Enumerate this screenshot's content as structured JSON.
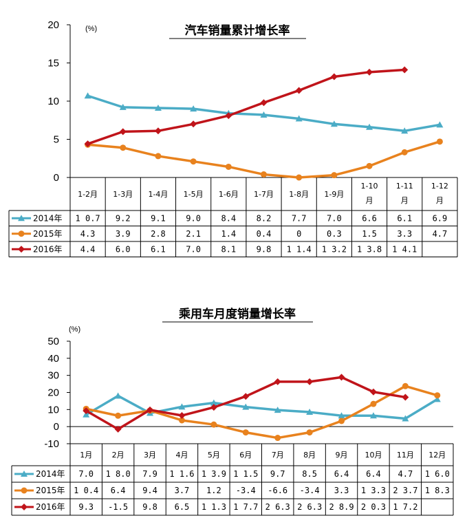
{
  "colors": {
    "s2014": "#4bacc6",
    "s2015": "#e8821e",
    "s2016": "#c0141a"
  },
  "chart_data": [
    {
      "type": "line",
      "title": "汽车销量累计增长率",
      "unit": "(%)",
      "ylim": [
        0,
        20
      ],
      "yticks": [
        "20",
        "15",
        "10",
        "5",
        "0"
      ],
      "categories": [
        "1-2月",
        "1-3月",
        "1-4月",
        "1-5月",
        "1-6月",
        "1-7月",
        "1-8月",
        "1-9月",
        "1-10月",
        "1-11月",
        "1-12月"
      ],
      "series": [
        {
          "name": "2014年",
          "values": [
            10.7,
            9.2,
            9.1,
            9.0,
            8.4,
            8.2,
            7.7,
            7.0,
            6.6,
            6.1,
            6.9
          ],
          "labels": [
            "10.7",
            "9.2",
            "9.1",
            "9.0",
            "8.4",
            "8.2",
            "7.7",
            "7.0",
            "6.6",
            "6.1",
            "6.9"
          ]
        },
        {
          "name": "2015年",
          "values": [
            4.3,
            3.9,
            2.8,
            2.1,
            1.4,
            0.4,
            0,
            0.3,
            1.5,
            3.3,
            4.7
          ],
          "labels": [
            "4.3",
            "3.9",
            "2.8",
            "2.1",
            "1.4",
            "0.4",
            "0",
            "0.3",
            "1.5",
            "3.3",
            "4.7"
          ]
        },
        {
          "name": "2016年",
          "values": [
            4.4,
            6.0,
            6.1,
            7.0,
            8.1,
            9.8,
            11.4,
            13.2,
            13.8,
            14.1,
            null
          ],
          "labels": [
            "4.4",
            "6.0",
            "6.1",
            "7.0",
            "8.1",
            "9.8",
            "11.4",
            "13.2",
            "13.8",
            "14.1",
            ""
          ]
        }
      ],
      "grid": false,
      "legend": "data-table"
    },
    {
      "type": "line",
      "title": "乘用车月度销量增长率",
      "unit": "(%)",
      "ylim": [
        -10,
        50
      ],
      "yticks": [
        "50",
        "40",
        "30",
        "20",
        "10",
        "0",
        "-10"
      ],
      "categories": [
        "1月",
        "2月",
        "3月",
        "4月",
        "5月",
        "6月",
        "7月",
        "8月",
        "9月",
        "10月",
        "11月",
        "12月"
      ],
      "series": [
        {
          "name": "2014年",
          "values": [
            7.0,
            18.0,
            7.9,
            11.6,
            13.9,
            11.5,
            9.7,
            8.5,
            6.4,
            6.4,
            4.7,
            16.0
          ],
          "labels": [
            "7.0",
            "18.0",
            "7.9",
            "11.6",
            "13.9",
            "11.5",
            "9.7",
            "8.5",
            "6.4",
            "6.4",
            "4.7",
            "16.0"
          ]
        },
        {
          "name": "2015年",
          "values": [
            10.4,
            6.4,
            9.4,
            3.7,
            1.2,
            -3.4,
            -6.6,
            -3.4,
            3.3,
            13.3,
            23.7,
            18.3
          ],
          "labels": [
            "10.4",
            "6.4",
            "9.4",
            "3.7",
            "1.2",
            "-3.4",
            "-6.6",
            "-3.4",
            "3.3",
            "13.3",
            "23.7",
            "18.3"
          ]
        },
        {
          "name": "2016年",
          "values": [
            9.3,
            -1.5,
            9.8,
            6.5,
            11.3,
            17.7,
            26.3,
            26.3,
            28.9,
            20.3,
            17.2,
            null
          ],
          "labels": [
            "9.3",
            "-1.5",
            "9.8",
            "6.5",
            "11.3",
            "17.7",
            "26.3",
            "26.3",
            "28.9",
            "20.3",
            "17.2",
            ""
          ]
        }
      ],
      "grid": false,
      "legend": "data-table"
    }
  ]
}
